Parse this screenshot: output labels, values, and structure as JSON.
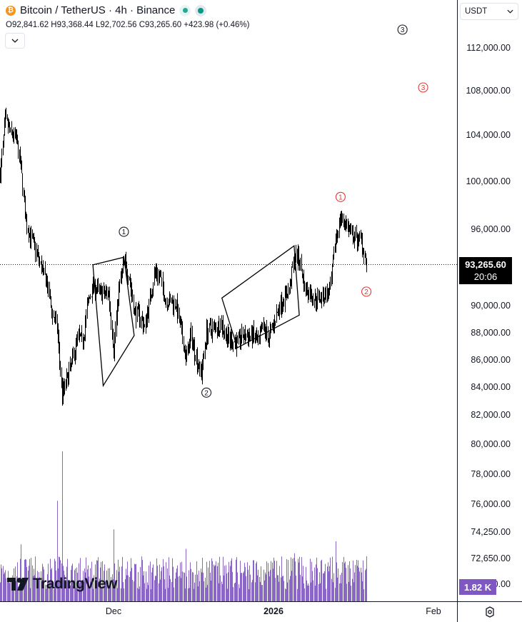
{
  "header": {
    "title": "Bitcoin / TetherUS · 4h · Binance",
    "coin_icon": "bitcoin-icon",
    "ohlc": "O92,841.62 H93,368.44 L92,702.56 C93,265.60 +423.98 (+0.46%)"
  },
  "currency_selector": {
    "value": "USDT",
    "icon": "chevron-down-icon"
  },
  "price_label": {
    "price": "93,265.60",
    "countdown": "20:06"
  },
  "volume_label": "1.82 K",
  "logo": "TradingView",
  "colors": {
    "candle": "#000000",
    "current_line": "#131722",
    "volume": "#7e57c2",
    "wave_primary": "#131722",
    "wave_alt": "#e53935",
    "price_tag": "#000000",
    "volume_tag": "#7e57c2"
  },
  "chart_data": {
    "type": "candlestick",
    "y_tick_labels": [
      "112,000.00",
      "108,000.00",
      "104,000.00",
      "100,000.00",
      "96,000.00",
      "90,000.00",
      "88,000.00",
      "86,000.00",
      "84,000.00",
      "82,000.00",
      "80,000.00",
      "78,000.00",
      "76,000.00",
      "74,250.00",
      "72,650.00",
      "71,000.00"
    ],
    "y_ticks": [
      112000,
      108000,
      104000,
      100000,
      96000,
      90000,
      88000,
      86000,
      84000,
      82000,
      80000,
      78000,
      76000,
      74250,
      72650,
      71000
    ],
    "x_tick_labels": [
      "Dec",
      "2026",
      "Feb"
    ],
    "x_ticks": [
      "2025-12-01",
      "2026-01-01",
      "2026-02-01"
    ],
    "x_range": [
      "2025-11-09",
      "2026-02-07"
    ],
    "current_price": 93265.6,
    "close_path": [
      [
        "2025-11-09",
        100600
      ],
      [
        "2025-11-10",
        105400
      ],
      [
        "2025-11-11",
        104200
      ],
      [
        "2025-11-12",
        103800
      ],
      [
        "2025-11-13",
        101200
      ],
      [
        "2025-11-14",
        96500
      ],
      [
        "2025-11-15",
        95300
      ],
      [
        "2025-11-16",
        94200
      ],
      [
        "2025-11-17",
        93000
      ],
      [
        "2025-11-18",
        91800
      ],
      [
        "2025-11-19",
        89600
      ],
      [
        "2025-11-20",
        88400
      ],
      [
        "2025-11-21",
        83500
      ],
      [
        "2025-11-22",
        84600
      ],
      [
        "2025-11-23",
        86000
      ],
      [
        "2025-11-24",
        87700
      ],
      [
        "2025-11-25",
        87400
      ],
      [
        "2025-11-26",
        90200
      ],
      [
        "2025-11-27",
        91500
      ],
      [
        "2025-11-28",
        91200
      ],
      [
        "2025-11-29",
        90900
      ],
      [
        "2025-11-30",
        91000
      ],
      [
        "2025-12-01",
        86800
      ],
      [
        "2025-12-02",
        91300
      ],
      [
        "2025-12-03",
        93400
      ],
      [
        "2025-12-04",
        92300
      ],
      [
        "2025-12-05",
        89500
      ],
      [
        "2025-12-06",
        89300
      ],
      [
        "2025-12-07",
        88400
      ],
      [
        "2025-12-08",
        90500
      ],
      [
        "2025-12-09",
        92700
      ],
      [
        "2025-12-10",
        92200
      ],
      [
        "2025-12-11",
        90500
      ],
      [
        "2025-12-12",
        90300
      ],
      [
        "2025-12-13",
        90200
      ],
      [
        "2025-12-14",
        88200
      ],
      [
        "2025-12-15",
        86100
      ],
      [
        "2025-12-16",
        87800
      ],
      [
        "2025-12-17",
        86200
      ],
      [
        "2025-12-18",
        85000
      ],
      [
        "2025-12-19",
        88100
      ],
      [
        "2025-12-20",
        88300
      ],
      [
        "2025-12-21",
        88500
      ],
      [
        "2025-12-22",
        88600
      ],
      [
        "2025-12-23",
        87600
      ],
      [
        "2025-12-24",
        87400
      ],
      [
        "2025-12-25",
        87300
      ],
      [
        "2025-12-26",
        87800
      ],
      [
        "2025-12-27",
        87700
      ],
      [
        "2025-12-28",
        87800
      ],
      [
        "2025-12-29",
        87200
      ],
      [
        "2025-12-30",
        88400
      ],
      [
        "2025-12-31",
        87600
      ],
      [
        "2026-01-01",
        88700
      ],
      [
        "2026-01-02",
        89900
      ],
      [
        "2026-01-03",
        90600
      ],
      [
        "2026-01-04",
        91200
      ],
      [
        "2026-01-05",
        93800
      ],
      [
        "2026-01-06",
        93700
      ],
      [
        "2026-01-07",
        91300
      ],
      [
        "2026-01-08",
        91000
      ],
      [
        "2026-01-09",
        90500
      ],
      [
        "2026-01-10",
        90700
      ],
      [
        "2026-01-11",
        90800
      ],
      [
        "2026-01-12",
        91200
      ],
      [
        "2026-01-13",
        95300
      ],
      [
        "2026-01-14",
        97000
      ],
      [
        "2026-01-15",
        96500
      ],
      [
        "2026-01-16",
        95500
      ],
      [
        "2026-01-17",
        95300
      ],
      [
        "2026-01-18",
        95200
      ],
      [
        "2026-01-19",
        93300
      ]
    ],
    "volume_spikes": [
      [
        "2025-11-21",
        1
      ],
      [
        "2025-11-20",
        0.67
      ],
      [
        "2025-11-13",
        0.38
      ],
      [
        "2025-12-01",
        0.48
      ],
      [
        "2025-12-05",
        0.25
      ],
      [
        "2025-12-15",
        0.35
      ],
      [
        "2026-01-05",
        0.32
      ],
      [
        "2026-01-13",
        0.4
      ],
      [
        "2026-01-19",
        0.3
      ]
    ],
    "annotations": [
      {
        "label": "1",
        "color": "#131722",
        "date": "2025-12-03",
        "price": 95800
      },
      {
        "label": "2",
        "color": "#131722",
        "date": "2025-12-19",
        "price": 83600
      },
      {
        "label": "3",
        "color": "#131722",
        "date": "2026-01-26",
        "price": 113700
      },
      {
        "label": "1",
        "color": "#e53935",
        "date": "2026-01-14",
        "price": 98700
      },
      {
        "label": "2",
        "color": "#e53935",
        "date": "2026-01-19",
        "price": 91100
      },
      {
        "label": "3",
        "color": "#e53935",
        "date": "2026-01-30",
        "price": 108300
      }
    ],
    "channels": [
      [
        [
          "2025-11-27",
          93200
        ],
        [
          "2025-12-03",
          93800
        ],
        [
          "2025-12-05",
          87800
        ],
        [
          "2025-11-29",
          84100
        ]
      ],
      [
        [
          "2025-12-22",
          90600
        ],
        [
          "2026-01-05",
          94700
        ],
        [
          "2026-01-06",
          89300
        ],
        [
          "2025-12-25",
          86900
        ]
      ]
    ]
  }
}
